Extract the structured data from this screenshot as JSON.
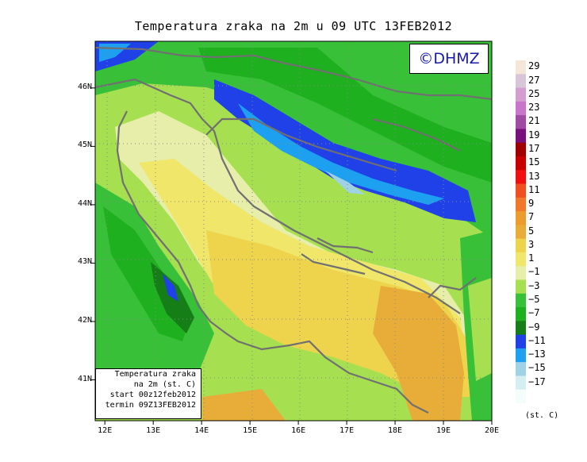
{
  "title": "Temperatura zraka na 2m u 09 UTC 13FEB2012",
  "copyright": "©DHMZ",
  "info_box": {
    "lines": [
      "Temperatura zraka",
      "na 2m (st. C)",
      "start 00z12feb2012",
      "termin 09Z13FEB2012"
    ]
  },
  "lat_labels": [
    {
      "text": "46N",
      "lat": 46
    },
    {
      "text": "45N",
      "lat": 45
    },
    {
      "text": "44N",
      "lat": 44
    },
    {
      "text": "43N",
      "lat": 43
    },
    {
      "text": "42N",
      "lat": 42
    },
    {
      "text": "41N",
      "lat": 41
    }
  ],
  "lon_labels": [
    {
      "text": "12E",
      "lon": 12
    },
    {
      "text": "13E",
      "lon": 13
    },
    {
      "text": "14E",
      "lon": 14
    },
    {
      "text": "15E",
      "lon": 15
    },
    {
      "text": "16E",
      "lon": 16
    },
    {
      "text": "17E",
      "lon": 17
    },
    {
      "text": "18E",
      "lon": 18
    },
    {
      "text": "19E",
      "lon": 19
    },
    {
      "text": "20E",
      "lon": 20
    }
  ],
  "extent": {
    "lon_min": 11.8,
    "lon_max": 20.0,
    "lat_min": 40.3,
    "lat_max": 46.8
  },
  "colorbar": {
    "units": "(st. C)",
    "labels": [
      "29",
      "27",
      "25",
      "23",
      "21",
      "19",
      "17",
      "15",
      "13",
      "11",
      "9",
      "7",
      "5",
      "3",
      "1",
      "−1",
      "−3",
      "−5",
      "−7",
      "−9",
      "−11",
      "−13",
      "−15",
      "−17"
    ],
    "colors": [
      "#f4e6d8",
      "#d8c6d8",
      "#d49ed0",
      "#c874c8",
      "#a04aa6",
      "#78107e",
      "#a00000",
      "#c80000",
      "#f01010",
      "#f05020",
      "#f07828",
      "#ec9c2c",
      "#e8ac38",
      "#eed44c",
      "#f0e66a",
      "#e6eeaa",
      "#a6e050",
      "#38c038",
      "#1eb01e",
      "#167e16",
      "#2040e8",
      "#1ea0f0",
      "#a0d2e6",
      "#d4eef2",
      "#f4fcfc"
    ]
  },
  "regions": [
    {
      "name": "sea-warm",
      "color": "#f0e66a"
    },
    {
      "name": "inland-warm",
      "color": "#eed44c"
    },
    {
      "name": "hot-region",
      "color": "#e8ac38"
    },
    {
      "name": "coastal-mild",
      "color": "#e6eeaa"
    },
    {
      "name": "land-cool",
      "color": "#a6e050"
    },
    {
      "name": "land-cold",
      "color": "#38c038"
    },
    {
      "name": "land-colder",
      "color": "#1eb01e"
    },
    {
      "name": "mountains-very-cold",
      "color": "#167e16"
    },
    {
      "name": "dinaric-frost",
      "color": "#2040e8"
    },
    {
      "name": "dinaric-frost-core",
      "color": "#1ea0f0"
    },
    {
      "name": "alpine-frost",
      "color": "#a0d2e6"
    }
  ]
}
